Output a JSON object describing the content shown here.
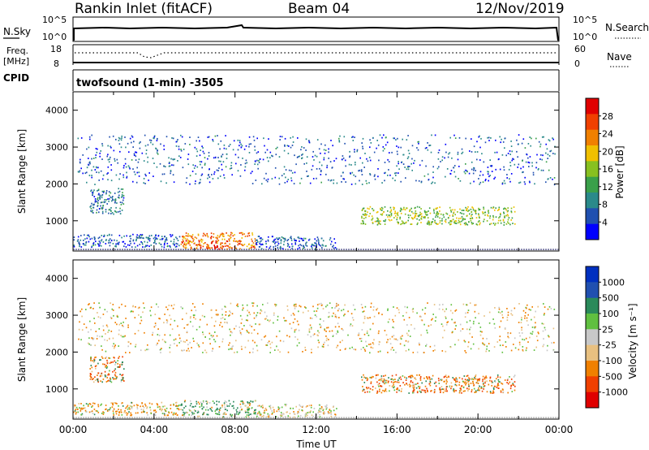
{
  "header": {
    "station": "Rankin Inlet (fitACF)",
    "beam": "Beam 04",
    "date": "12/Nov/2019"
  },
  "panels": {
    "nsky": {
      "left_label": "N.Sky",
      "right_label": "N.Search",
      "left_ticks": [
        "10^5",
        "10^0"
      ],
      "right_ticks": [
        "10^5",
        "10^0"
      ]
    },
    "freq": {
      "left_label_1": "Freq.",
      "left_label_2": "[MHz]",
      "right_label": "Nave",
      "left_ticks": [
        "18",
        "8"
      ],
      "right_ticks": [
        "60",
        "0"
      ]
    },
    "cpid": {
      "label": "CPID",
      "value": "twofsound (1-min) -3505"
    }
  },
  "colors": {
    "power_scale": [
      "#0000ff",
      "#2050b0",
      "#2a8a8a",
      "#3aa04a",
      "#88c020",
      "#f0c000",
      "#f08000",
      "#f04000",
      "#e00000"
    ],
    "velocity_scale": [
      "#e00000",
      "#f04000",
      "#f08000",
      "#e8c080",
      "#c8c8c8",
      "#60c040",
      "#2a8a5a",
      "#2050b0",
      "#0030c0"
    ]
  },
  "chart_data": [
    {
      "type": "heatmap",
      "name": "power",
      "xlabel": "Time UT",
      "ylabel": "Slant Range [km]",
      "xlim": [
        "00:00",
        "24:00"
      ],
      "ylim": [
        180,
        4500
      ],
      "x_ticks": [
        "00:00",
        "04:00",
        "08:00",
        "12:00",
        "16:00",
        "20:00",
        "00:00"
      ],
      "y_ticks": [
        "1000",
        "2000",
        "3000",
        "4000"
      ],
      "colorbar": {
        "label": "Power [dB]",
        "range": [
          0,
          32
        ],
        "ticks": [
          "4",
          "8",
          "12",
          "16",
          "20",
          "24",
          "28"
        ]
      },
      "clusters": [
        {
          "t_start": 0.0,
          "t_end": 5.3,
          "r_min": 300,
          "r_max": 650,
          "value": 6
        },
        {
          "t_start": 5.3,
          "t_end": 9.0,
          "r_min": 250,
          "r_max": 700,
          "value": 24
        },
        {
          "t_start": 6.2,
          "t_end": 7.6,
          "r_min": 250,
          "r_max": 500,
          "value": 28
        },
        {
          "t_start": 9.0,
          "t_end": 13.0,
          "r_min": 250,
          "r_max": 600,
          "value": 6
        },
        {
          "t_start": 14.2,
          "t_end": 21.8,
          "r_min": 900,
          "r_max": 1400,
          "value": 16
        },
        {
          "t_start": 0.2,
          "t_end": 23.8,
          "r_min": 2000,
          "r_max": 3350,
          "value": 6
        },
        {
          "t_start": 0.8,
          "t_end": 2.5,
          "r_min": 1200,
          "r_max": 1900,
          "value": 8
        }
      ]
    },
    {
      "type": "heatmap",
      "name": "velocity",
      "xlabel": "Time UT",
      "ylabel": "Slant Range [km]",
      "xlim": [
        "00:00",
        "24:00"
      ],
      "ylim": [
        180,
        4500
      ],
      "x_ticks": [
        "00:00",
        "04:00",
        "08:00",
        "12:00",
        "16:00",
        "20:00",
        "00:00"
      ],
      "y_ticks": [
        "1000",
        "2000",
        "3000",
        "4000"
      ],
      "colorbar": {
        "label": "Velocity [m s⁻¹]",
        "ticks": [
          "1000",
          "500",
          "100",
          "25",
          "-25",
          "-100",
          "-500",
          "-1000"
        ]
      },
      "clusters": [
        {
          "t_start": 0.0,
          "t_end": 5.3,
          "r_min": 300,
          "r_max": 650,
          "value": -100
        },
        {
          "t_start": 5.3,
          "t_end": 9.0,
          "r_min": 250,
          "r_max": 700,
          "value": 100
        },
        {
          "t_start": 9.0,
          "t_end": 13.0,
          "r_min": 250,
          "r_max": 600,
          "value": -25
        },
        {
          "t_start": 14.2,
          "t_end": 21.8,
          "r_min": 900,
          "r_max": 1400,
          "value": -300
        },
        {
          "t_start": 0.2,
          "t_end": 23.8,
          "r_min": 2000,
          "r_max": 3350,
          "value": -50
        },
        {
          "t_start": 0.8,
          "t_end": 2.5,
          "r_min": 1200,
          "r_max": 1900,
          "value": -300
        }
      ]
    }
  ]
}
